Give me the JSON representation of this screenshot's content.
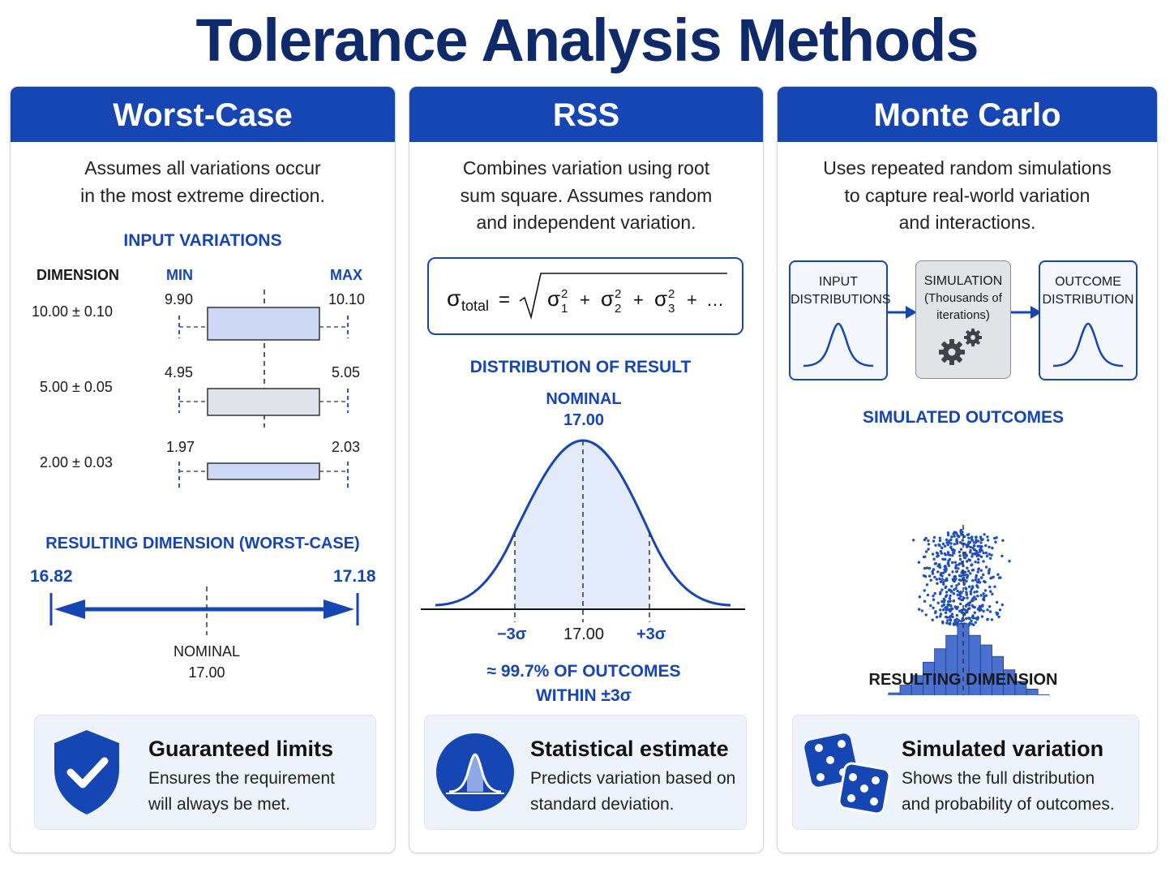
{
  "title": "Tolerance Analysis Methods",
  "worst_case": {
    "header": "Worst-Case",
    "description": [
      "Assumes all variations occur",
      "in the most extreme direction."
    ],
    "input_heading": "INPUT VARIATIONS",
    "col_dimension": "DIMENSION",
    "col_min": "MIN",
    "col_max": "MAX",
    "rows": [
      {
        "dimension": "10.00 ± 0.10",
        "min": "9.90",
        "max": "10.10"
      },
      {
        "dimension": "5.00 ± 0.05",
        "min": "4.95",
        "max": "5.05"
      },
      {
        "dimension": "2.00 ± 0.03",
        "min": "1.97",
        "max": "2.03"
      }
    ],
    "result_heading": "RESULTING DIMENSION (WORST-CASE)",
    "result_min": "16.82",
    "result_max": "17.18",
    "nominal_label": "NOMINAL",
    "nominal_value": "17.00",
    "card_title": "Guaranteed limits",
    "card_text": [
      "Ensures the requirement",
      "will always be met."
    ]
  },
  "rss": {
    "header": "RSS",
    "description": [
      "Combines variation using root",
      "sum square. Assumes random",
      "and independent variation."
    ],
    "formula": {
      "lhs": "σ",
      "lhs_sub": "total",
      "eq": "=",
      "terms": [
        "σ",
        "σ",
        "σ"
      ],
      "subs": [
        "1",
        "2",
        "3"
      ],
      "sup": "2",
      "plus": "+",
      "ellipsis": "…"
    },
    "dist_heading": "DISTRIBUTION OF RESULT",
    "nominal_label": "NOMINAL",
    "nominal_value": "17.00",
    "axis_minus": "−3σ",
    "axis_center": "17.00",
    "axis_plus": "+3σ",
    "summary": [
      "≈ 99.7% OF OUTCOMES",
      "WITHIN ±3σ"
    ],
    "card_title": "Statistical estimate",
    "card_text": [
      "Predicts variation based on",
      "standard deviation."
    ]
  },
  "monte_carlo": {
    "header": "Monte Carlo",
    "description": [
      "Uses repeated random simulations",
      "to capture real-world variation",
      "and interactions."
    ],
    "flow": {
      "input": [
        "INPUT",
        "DISTRIBUTIONS"
      ],
      "sim": [
        "SIMULATION",
        "(Thousands of",
        "iterations)"
      ],
      "output": [
        "OUTCOME",
        "DISTRIBUTION"
      ]
    },
    "sim_heading": "SIMULATED OUTCOMES",
    "xlabel": "RESULTING DIMENSION",
    "card_title": "Simulated variation",
    "card_text": [
      "Shows the full distribution",
      "and probability of outcomes."
    ]
  },
  "chart_data": {
    "type": "bar",
    "x": [
      16.7,
      16.73,
      16.76,
      16.79,
      16.82,
      16.85,
      16.88,
      16.91,
      16.94,
      16.97,
      17.0,
      17.03,
      17.06,
      17.09,
      17.12,
      17.15,
      17.18,
      17.21,
      17.24,
      17.27,
      17.3,
      17.33
    ],
    "values": [
      1,
      2,
      3,
      5,
      8,
      12,
      17,
      24,
      31,
      38,
      44,
      38,
      33,
      27,
      20,
      14,
      10,
      7,
      4,
      3,
      2,
      1
    ],
    "xticks": [
      "16.6",
      "16.8",
      "17.0",
      "17.2",
      "17.4"
    ],
    "xlim": [
      16.6,
      17.4
    ],
    "xlabel": "RESULTING DIMENSION",
    "color": "#4a70d0"
  },
  "colors": {
    "primary": "#1646b3",
    "title": "#0e2a6b",
    "card_bg": "#edf2fb"
  }
}
